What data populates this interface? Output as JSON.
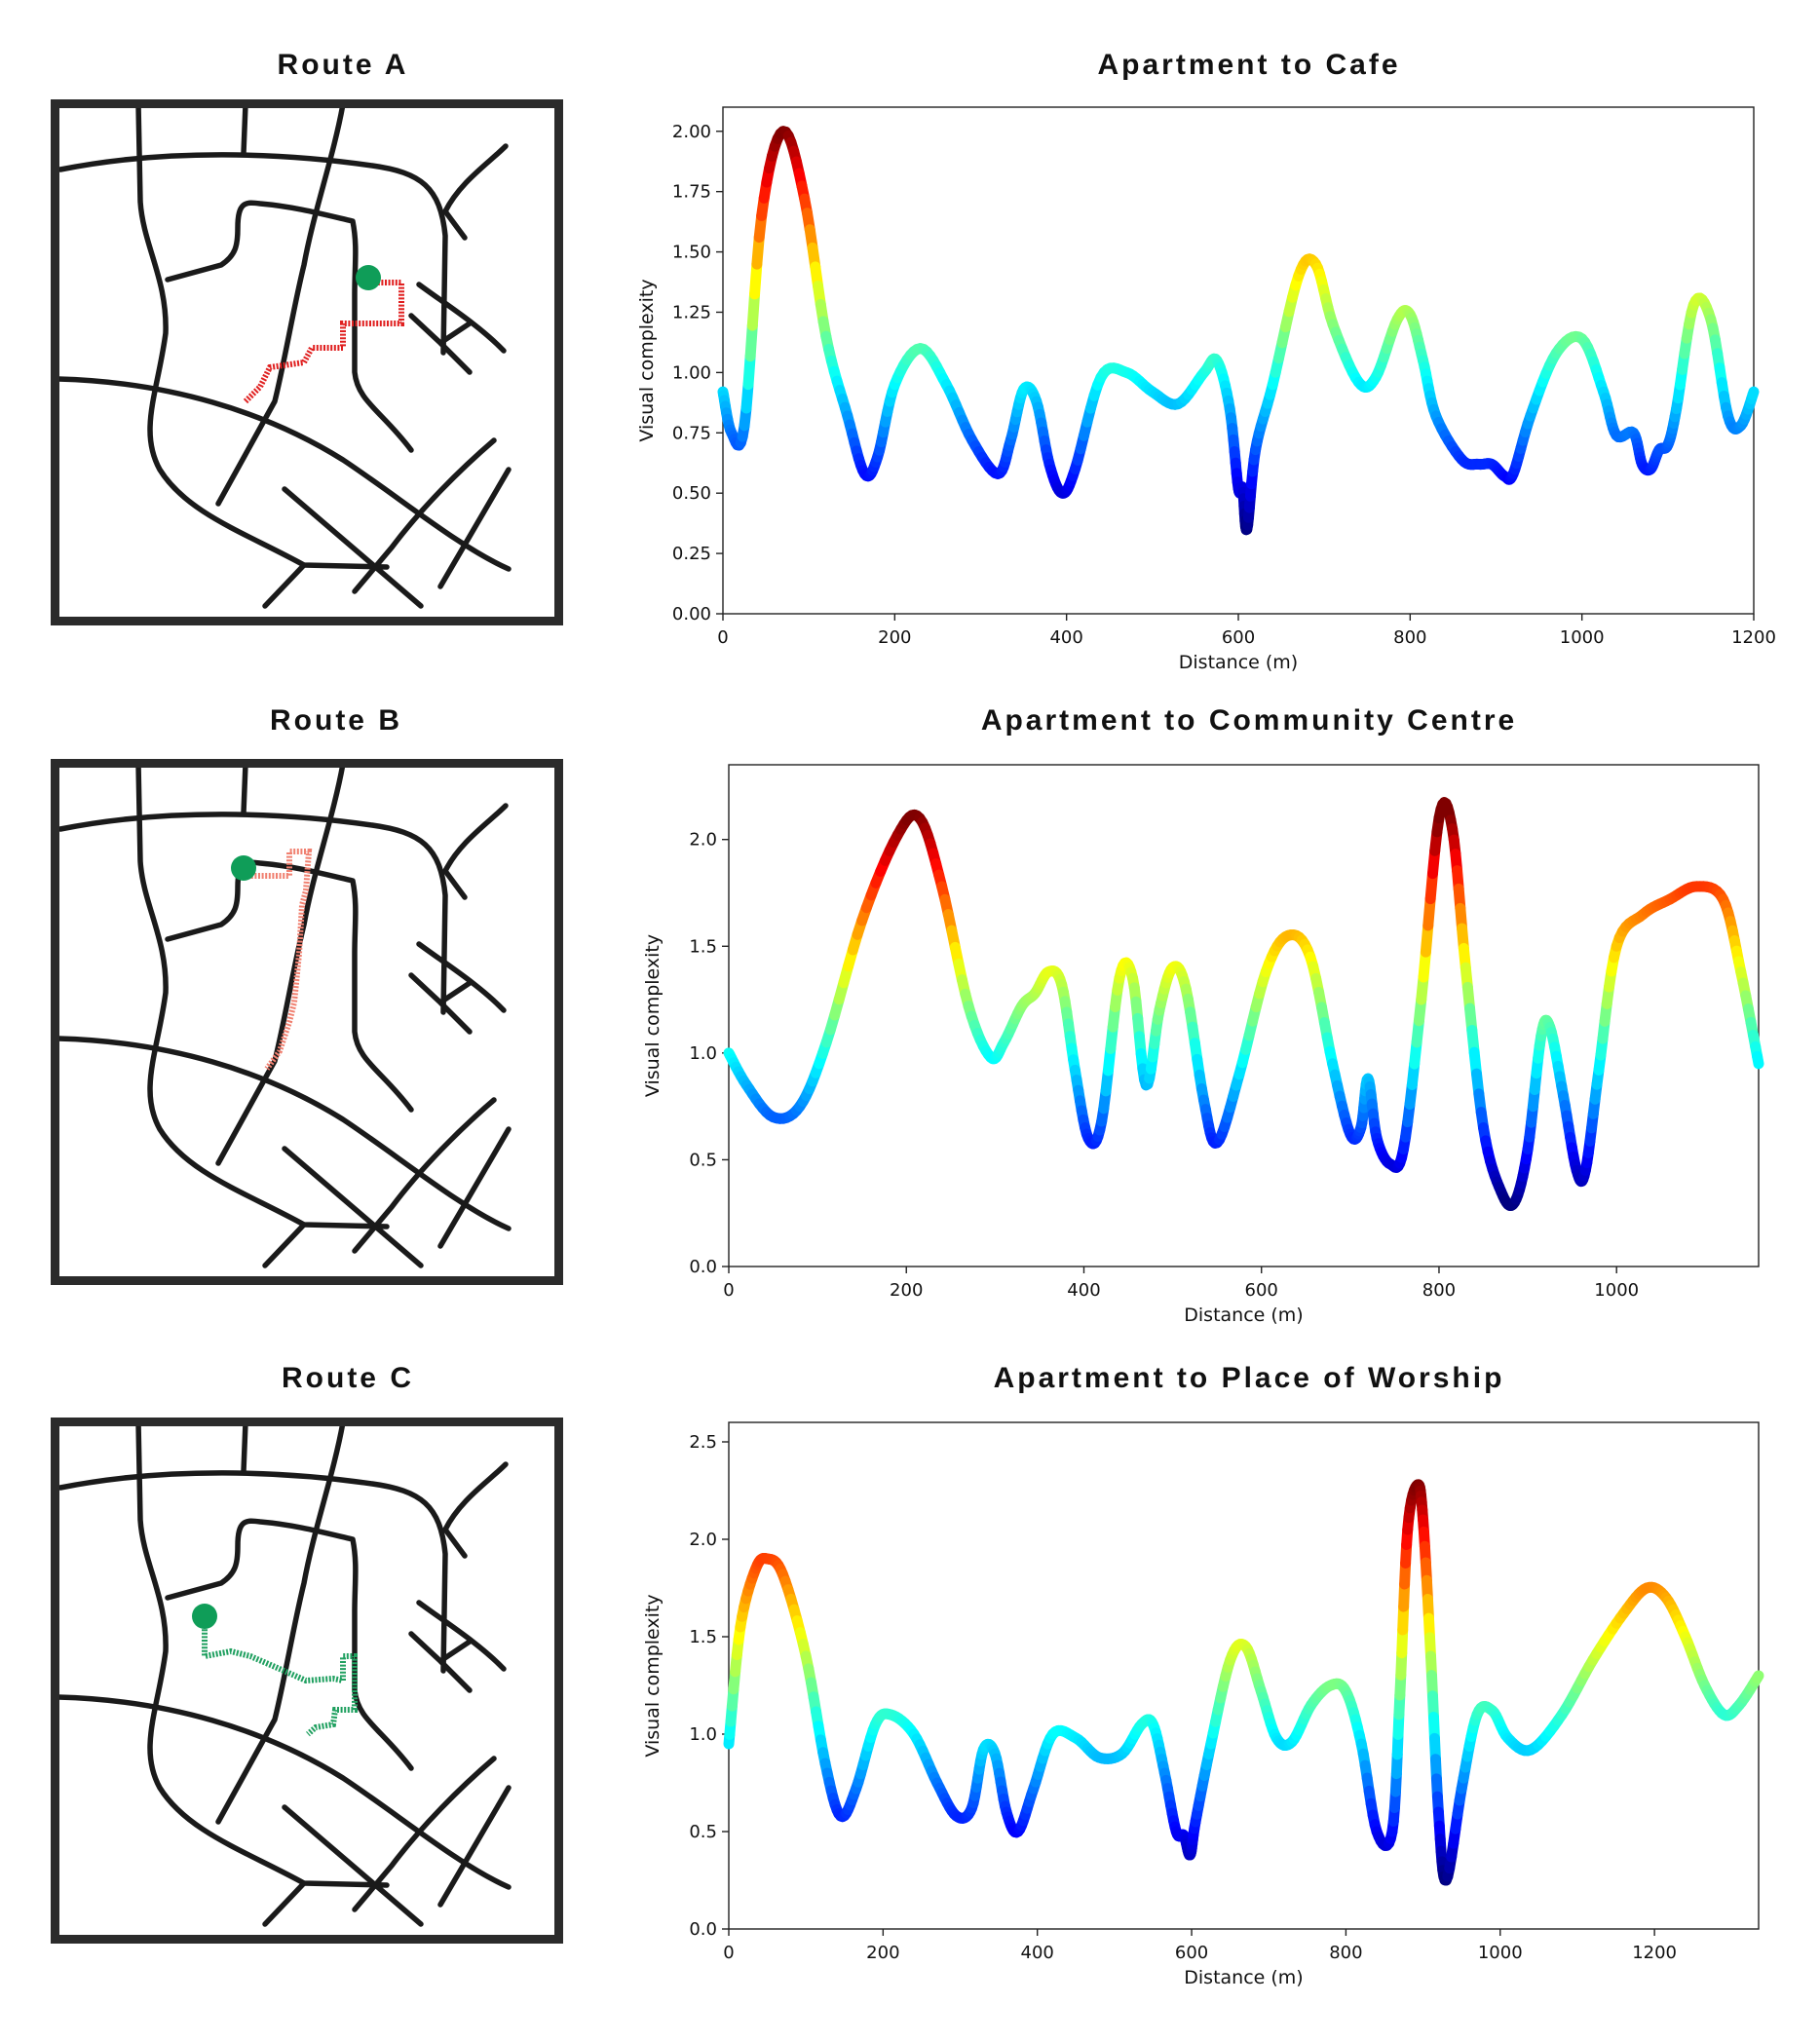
{
  "maps": [
    {
      "title": "Route A",
      "route_color": "#e02020",
      "dot_color": "#0f9d58",
      "route_style": "dashed-red"
    },
    {
      "title": "Route B",
      "route_color": "#f08070",
      "dot_color": "#0f9d58",
      "route_style": "dashed-light-red"
    },
    {
      "title": "Route C",
      "route_color": "#20a060",
      "dot_color": "#0f9d58",
      "route_style": "dashed-green"
    }
  ],
  "chart_data": [
    {
      "type": "line",
      "title": "Apartment to Cafe",
      "xlabel": "Distance (m)",
      "ylabel": "Visual complexity",
      "xlim": [
        0,
        1200
      ],
      "ylim": [
        0,
        2.1
      ],
      "xticks": [
        0,
        200,
        400,
        600,
        800,
        1000,
        1200
      ],
      "yticks": [
        0.0,
        0.25,
        0.5,
        0.75,
        1.0,
        1.25,
        1.5,
        1.75,
        2.0
      ],
      "ytick_labels": [
        "0.00",
        "0.25",
        "0.50",
        "0.75",
        "1.00",
        "1.25",
        "1.50",
        "1.75",
        "2.00"
      ],
      "xtick_labels": [
        "0",
        "200",
        "400",
        "600",
        "800",
        "1000",
        "1200"
      ],
      "colormap": "jet",
      "grid": false,
      "series": [
        {
          "x": [
            0,
            10,
            25,
            45,
            70,
            95,
            120,
            145,
            165,
            180,
            200,
            230,
            260,
            290,
            320,
            335,
            350,
            365,
            380,
            395,
            410,
            440,
            470,
            500,
            530,
            560,
            575,
            590,
            600,
            605,
            610,
            620,
            640,
            670,
            690,
            710,
            740,
            760,
            785,
            800,
            815,
            830,
            860,
            880,
            895,
            910,
            920,
            940,
            970,
            1000,
            1025,
            1040,
            1060,
            1070,
            1080,
            1090,
            1100,
            1110,
            1130,
            1150,
            1170,
            1185,
            1200
          ],
          "y": [
            0.92,
            0.75,
            0.78,
            1.65,
            2.0,
            1.72,
            1.15,
            0.82,
            0.58,
            0.65,
            0.95,
            1.1,
            0.95,
            0.72,
            0.58,
            0.72,
            0.93,
            0.88,
            0.62,
            0.5,
            0.6,
            0.98,
            1.0,
            0.92,
            0.87,
            1.0,
            1.05,
            0.85,
            0.52,
            0.52,
            0.35,
            0.68,
            0.95,
            1.4,
            1.45,
            1.2,
            0.96,
            0.98,
            1.22,
            1.24,
            1.05,
            0.82,
            0.64,
            0.62,
            0.62,
            0.57,
            0.58,
            0.82,
            1.08,
            1.14,
            0.92,
            0.74,
            0.75,
            0.62,
            0.6,
            0.68,
            0.7,
            0.85,
            1.28,
            1.22,
            0.82,
            0.78,
            0.92
          ]
        }
      ]
    },
    {
      "type": "line",
      "title": "Apartment to Community Centre",
      "xlabel": "Distance (m)",
      "ylabel": "Visual complexity",
      "xlim": [
        0,
        1160
      ],
      "ylim": [
        0,
        2.35
      ],
      "xticks": [
        0,
        200,
        400,
        600,
        800,
        1000
      ],
      "yticks": [
        0.0,
        0.5,
        1.0,
        1.5,
        2.0
      ],
      "ytick_labels": [
        "0.0",
        "0.5",
        "1.0",
        "1.5",
        "2.0"
      ],
      "xtick_labels": [
        "0",
        "200",
        "400",
        "600",
        "800",
        "1000"
      ],
      "colormap": "jet",
      "grid": false,
      "series": [
        {
          "x": [
            0,
            20,
            50,
            80,
            110,
            150,
            190,
            215,
            240,
            270,
            295,
            310,
            330,
            345,
            360,
            375,
            390,
            405,
            420,
            440,
            455,
            470,
            485,
            500,
            515,
            535,
            550,
            575,
            605,
            630,
            655,
            680,
            700,
            712,
            720,
            730,
            745,
            760,
            780,
            800,
            815,
            830,
            850,
            870,
            885,
            900,
            915,
            925,
            940,
            955,
            965,
            980,
            1000,
            1030,
            1060,
            1090,
            1120,
            1140,
            1160
          ],
          "y": [
            1.0,
            0.85,
            0.7,
            0.75,
            1.05,
            1.62,
            2.02,
            2.1,
            1.78,
            1.22,
            0.98,
            1.05,
            1.22,
            1.28,
            1.38,
            1.32,
            0.92,
            0.6,
            0.68,
            1.35,
            1.35,
            0.85,
            1.2,
            1.4,
            1.3,
            0.78,
            0.58,
            0.9,
            1.38,
            1.55,
            1.45,
            0.95,
            0.62,
            0.65,
            0.88,
            0.6,
            0.48,
            0.55,
            1.25,
            2.1,
            2.05,
            1.4,
            0.65,
            0.35,
            0.3,
            0.55,
            1.08,
            1.12,
            0.8,
            0.45,
            0.45,
            0.92,
            1.5,
            1.65,
            1.72,
            1.78,
            1.72,
            1.38,
            0.95
          ]
        }
      ]
    },
    {
      "type": "line",
      "title": "Apartment to Place of Worship",
      "xlabel": "Distance (m)",
      "ylabel": "Visual complexity",
      "xlim": [
        0,
        1335
      ],
      "ylim": [
        0,
        2.6
      ],
      "xticks": [
        0,
        200,
        400,
        600,
        800,
        1000,
        1200
      ],
      "yticks": [
        0.0,
        0.5,
        1.0,
        1.5,
        2.0,
        2.5
      ],
      "ytick_labels": [
        "0.0",
        "0.5",
        "1.0",
        "1.5",
        "2.0",
        "2.5"
      ],
      "xtick_labels": [
        "0",
        "200",
        "400",
        "600",
        "800",
        "1000",
        "1200"
      ],
      "colormap": "jet",
      "grid": false,
      "series": [
        {
          "x": [
            0,
            15,
            35,
            50,
            70,
            100,
            125,
            145,
            165,
            190,
            210,
            240,
            270,
            295,
            315,
            330,
            345,
            360,
            375,
            395,
            420,
            450,
            480,
            510,
            535,
            550,
            565,
            580,
            590,
            598,
            605,
            625,
            650,
            670,
            690,
            710,
            730,
            755,
            780,
            800,
            820,
            840,
            860,
            870,
            880,
            893,
            900,
            910,
            920,
            930,
            950,
            970,
            990,
            1010,
            1040,
            1080,
            1120,
            1160,
            1190,
            1215,
            1240,
            1265,
            1290,
            1310,
            1335
          ],
          "y": [
            0.95,
            1.55,
            1.85,
            1.9,
            1.82,
            1.4,
            0.85,
            0.58,
            0.72,
            1.05,
            1.1,
            1.0,
            0.75,
            0.58,
            0.62,
            0.92,
            0.9,
            0.6,
            0.5,
            0.72,
            1.0,
            0.98,
            0.88,
            0.9,
            1.05,
            1.05,
            0.8,
            0.5,
            0.48,
            0.38,
            0.55,
            0.95,
            1.38,
            1.45,
            1.22,
            0.98,
            0.96,
            1.15,
            1.25,
            1.22,
            0.95,
            0.5,
            0.5,
            1.2,
            2.05,
            2.28,
            2.1,
            1.4,
            0.6,
            0.25,
            0.72,
            1.1,
            1.12,
            0.98,
            0.92,
            1.1,
            1.38,
            1.62,
            1.75,
            1.7,
            1.5,
            1.25,
            1.1,
            1.15,
            1.3
          ]
        }
      ]
    }
  ]
}
